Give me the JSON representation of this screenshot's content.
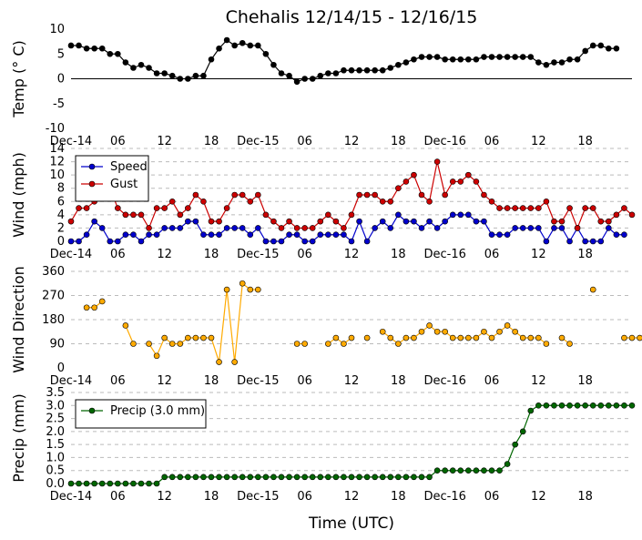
{
  "chart_data": {
    "title": "Chehalis 12/14/15 - 12/16/15",
    "xlabel": "Time (UTC)",
    "x_ticks": [
      "Dec-14",
      "06",
      "12",
      "18",
      "Dec-15",
      "06",
      "12",
      "18",
      "Dec-16",
      "06",
      "12",
      "18"
    ],
    "panels": [
      {
        "id": "temp",
        "type": "line",
        "ylabel": "Temp ($^\\circ$C)",
        "ylabel_text": "Temp (° C)",
        "ylim": [
          -10,
          10
        ],
        "yticks": [
          -10,
          -5,
          0,
          5,
          10
        ],
        "zero_line": true,
        "grid": false,
        "series": [
          {
            "color": "#000000",
            "values": [
              6.7,
              6.7,
              6.1,
              6.1,
              6.1,
              5.0,
              5.0,
              3.3,
              2.2,
              2.8,
              2.2,
              1.1,
              1.1,
              0.6,
              0.0,
              0.0,
              0.6,
              0.6,
              3.9,
              6.1,
              7.8,
              6.7,
              7.2,
              6.7,
              6.7,
              5.0,
              2.8,
              1.1,
              0.6,
              -0.6,
              0.0,
              0.0,
              0.6,
              1.1,
              1.1,
              1.7,
              1.7,
              1.7,
              1.7,
              1.7,
              1.7,
              2.2,
              2.8,
              3.3,
              3.9,
              4.4,
              4.4,
              4.4,
              3.9,
              3.9,
              3.9,
              3.9,
              3.9,
              4.4,
              4.4,
              4.4,
              4.4,
              4.4,
              4.4,
              4.4,
              3.3,
              2.8,
              3.3,
              3.3,
              3.9,
              3.9,
              5.6,
              6.7,
              6.7,
              6.1,
              6.1
            ]
          }
        ]
      },
      {
        "id": "wind",
        "type": "line",
        "ylabel": "Wind (mph)",
        "ylim": [
          0,
          14
        ],
        "yticks": [
          0,
          2,
          4,
          6,
          8,
          10,
          12,
          14
        ],
        "grid": true,
        "legend": "upper-left",
        "series": [
          {
            "name": "Speed",
            "color": "#0000cc",
            "values": [
              0,
              0,
              1,
              3,
              2,
              0,
              0,
              1,
              1,
              0,
              1,
              1,
              2,
              2,
              2,
              3,
              3,
              1,
              1,
              1,
              2,
              2,
              2,
              1,
              2,
              0,
              0,
              0,
              1,
              1,
              0,
              0,
              1,
              1,
              1,
              1,
              0,
              3,
              0,
              2,
              3,
              2,
              4,
              3,
              3,
              2,
              3,
              2,
              3,
              4,
              4,
              4,
              3,
              3,
              1,
              1,
              1,
              2,
              2,
              2,
              2,
              0,
              2,
              2,
              0,
              2,
              0,
              0,
              0,
              2,
              1,
              1
            ]
          },
          {
            "name": "Gust",
            "color": "#cc0000",
            "values": [
              3,
              5,
              5,
              6,
              8,
              8,
              5,
              4,
              4,
              4,
              2,
              5,
              5,
              6,
              4,
              5,
              7,
              6,
              3,
              3,
              5,
              7,
              7,
              6,
              7,
              4,
              3,
              2,
              3,
              2,
              2,
              2,
              3,
              4,
              3,
              2,
              4,
              7,
              7,
              7,
              6,
              6,
              8,
              9,
              10,
              7,
              6,
              12,
              7,
              9,
              9,
              10,
              9,
              7,
              6,
              5,
              5,
              5,
              5,
              5,
              5,
              6,
              3,
              3,
              5,
              2,
              5,
              5,
              3,
              3,
              4,
              5,
              4
            ]
          }
        ]
      },
      {
        "id": "direction",
        "type": "scatter-line",
        "ylabel": "Wind Direction",
        "ylim": [
          0,
          360
        ],
        "yticks": [
          0,
          90,
          180,
          270,
          360
        ],
        "grid": true,
        "series": [
          {
            "color": "#ffaa00",
            "values": [
              null,
              null,
              225,
              225,
              248,
              null,
              null,
              158,
              90,
              null,
              90,
              45,
              112,
              90,
              90,
              112,
              112,
              112,
              112,
              22,
              292,
              22,
              315,
              292,
              292,
              null,
              null,
              null,
              null,
              90,
              90,
              null,
              null,
              90,
              112,
              90,
              112,
              null,
              112,
              null,
              135,
              112,
              90,
              112,
              112,
              135,
              158,
              135,
              135,
              112,
              112,
              112,
              112,
              135,
              112,
              135,
              158,
              135,
              112,
              112,
              112,
              90,
              null,
              112,
              90,
              null,
              null,
              292,
              null,
              null,
              null,
              112,
              112,
              112
            ]
          }
        ]
      },
      {
        "id": "precip",
        "type": "line",
        "ylabel": "Precip (mm)",
        "ylim": [
          0,
          3.5
        ],
        "yticks": [
          0.0,
          0.5,
          1.0,
          1.5,
          2.0,
          2.5,
          3.0,
          3.5
        ],
        "grid": true,
        "legend": "upper-left",
        "series": [
          {
            "name": "Precip (3.0 mm)",
            "color": "#006600",
            "values": [
              0,
              0,
              0,
              0,
              0,
              0,
              0,
              0,
              0,
              0,
              0,
              0,
              0.25,
              0.25,
              0.25,
              0.25,
              0.25,
              0.25,
              0.25,
              0.25,
              0.25,
              0.25,
              0.25,
              0.25,
              0.25,
              0.25,
              0.25,
              0.25,
              0.25,
              0.25,
              0.25,
              0.25,
              0.25,
              0.25,
              0.25,
              0.25,
              0.25,
              0.25,
              0.25,
              0.25,
              0.25,
              0.25,
              0.25,
              0.25,
              0.25,
              0.25,
              0.25,
              0.5,
              0.5,
              0.5,
              0.5,
              0.5,
              0.5,
              0.5,
              0.5,
              0.5,
              0.75,
              1.5,
              2.0,
              2.8,
              3.0,
              3.0,
              3.0,
              3.0,
              3.0,
              3.0,
              3.0,
              3.0,
              3.0,
              3.0,
              3.0,
              3.0,
              3.0
            ]
          }
        ]
      }
    ]
  }
}
